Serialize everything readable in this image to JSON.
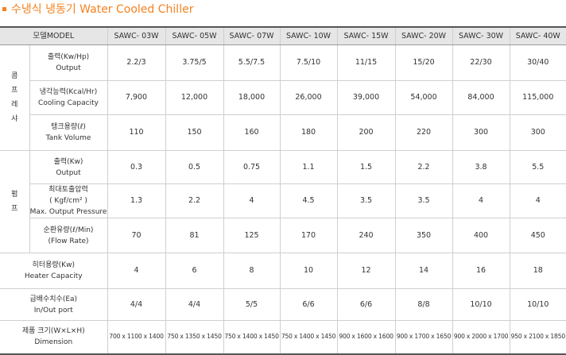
{
  "title": "수냉식 냉동기 Water Cooled Chiller",
  "table": {
    "header": "모델MODEL",
    "models": [
      "SAWC- 03W",
      "SAWC- 05W",
      "SAWC- 07W",
      "SAWC- 10W",
      "SAWC- 15W",
      "SAWC- 20W",
      "SAWC- 30W",
      "SAWC- 40W"
    ],
    "sections": [
      {
        "label": "콤프레샤",
        "rows": [
          {
            "label": [
              "출력(Kw/Hp)",
              "Output"
            ],
            "values": [
              "2.2/3",
              "3.75/5",
              "5.5/7.5",
              "7.5/10",
              "11/15",
              "15/20",
              "22/30",
              "30/40"
            ]
          },
          {
            "label": [
              "냉각능력(Kcal/Hr)",
              "Cooling Capacity"
            ],
            "values": [
              "7,900",
              "12,000",
              "18,000",
              "26,000",
              "39,000",
              "54,000",
              "84,000",
              "115,000"
            ]
          },
          {
            "label": [
              "탱크용량(ℓ)",
              "Tank Volume"
            ],
            "values": [
              "110",
              "150",
              "160",
              "180",
              "200",
              "220",
              "300",
              "300"
            ]
          }
        ]
      },
      {
        "label": "펌프",
        "rows": [
          {
            "label": [
              "출력(Kw)",
              "Output"
            ],
            "values": [
              "0.3",
              "0.5",
              "0.75",
              "1.1",
              "1.5",
              "2.2",
              "3.8",
              "5.5"
            ]
          },
          {
            "label": [
              "최대토출압력",
              "( Kgf/cm² )",
              "Max. Output Pressure"
            ],
            "values": [
              "1.3",
              "2.2",
              "4",
              "4.5",
              "3.5",
              "3.5",
              "4",
              "4"
            ]
          },
          {
            "label": [
              "순환유량(ℓ/Min)",
              "(Flow Rate)"
            ],
            "values": [
              "70",
              "81",
              "125",
              "170",
              "240",
              "350",
              "400",
              "450"
            ]
          }
        ]
      }
    ],
    "rows": [
      {
        "label": [
          "히터용량(Kw)",
          "Heater Capacity"
        ],
        "values": [
          "4",
          "6",
          "8",
          "10",
          "12",
          "14",
          "16",
          "18"
        ]
      },
      {
        "label": [
          "급배수치수(Ea)",
          "In/Out port"
        ],
        "values": [
          "4/4",
          "4/4",
          "5/5",
          "6/6",
          "6/6",
          "8/8",
          "10/10",
          "10/10"
        ]
      },
      {
        "label": [
          "제품 크기(W×L×H)",
          "Dimension"
        ],
        "values": [
          "700 x 1100 x 1400",
          "750 x 1350 x 1450",
          "750 x 1400 x 1450",
          "750 x 1400 x 1450",
          "900 x 1600 x 1600",
          "900 x 1700 x 1650",
          "900 x 2000 x 1700",
          "950 x 2100 x 1850"
        ]
      }
    ]
  }
}
